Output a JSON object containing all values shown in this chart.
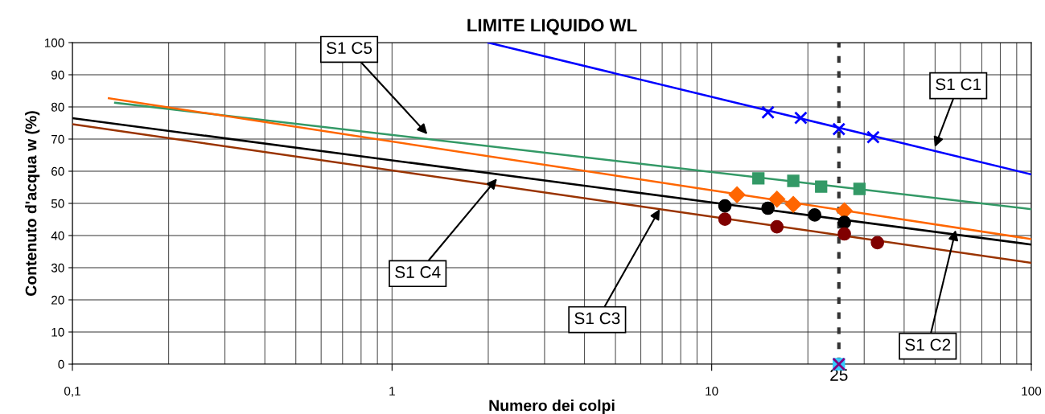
{
  "chart_data": {
    "type": "scatter",
    "title": "LIMITE LIQUIDO WL",
    "xlabel": "Numero dei colpi",
    "ylabel": "Contenuto d'acqua w (%)",
    "log": "x",
    "xlim": [
      0.1,
      100
    ],
    "xticks": [
      {
        "value": 0.1,
        "label": "0,1"
      },
      1,
      10,
      100
    ],
    "ylim": [
      0,
      100
    ],
    "yticks": [
      0,
      10,
      20,
      30,
      40,
      50,
      60,
      70,
      80,
      90,
      100
    ],
    "grid": true,
    "legend": false,
    "series": [
      {
        "type": "line",
        "color": "#0000ff",
        "x": [
          2,
          100
        ],
        "values": [
          100,
          59
        ],
        "marker": "none"
      },
      {
        "type": "line",
        "color": "#339966",
        "x": [
          0.136,
          100
        ],
        "values": [
          81.3,
          48.2
        ],
        "marker": "none"
      },
      {
        "type": "line",
        "color": "#ff6600",
        "x": [
          0.13,
          100
        ],
        "values": [
          82.7,
          38.9
        ],
        "marker": "none"
      },
      {
        "type": "line",
        "color": "#000000",
        "x": [
          0.1,
          100
        ],
        "values": [
          76.5,
          37.2
        ],
        "marker": "none"
      },
      {
        "type": "line",
        "color": "#993300",
        "x": [
          0.1,
          100
        ],
        "values": [
          74.6,
          31.5
        ],
        "marker": "none"
      },
      {
        "color": "#0000ff",
        "marker": "cross",
        "x": [
          15,
          19,
          25,
          32
        ],
        "values": [
          78.3,
          76.6,
          73.1,
          70.6
        ]
      },
      {
        "color": "#339966",
        "marker": "square",
        "x": [
          14,
          18,
          22,
          29
        ],
        "values": [
          57.8,
          57.0,
          55.2,
          54.5
        ]
      },
      {
        "color": "#ff6600",
        "marker": "diamond",
        "x": [
          12,
          16,
          18,
          26
        ],
        "values": [
          52.7,
          51.3,
          49.7,
          47.7
        ]
      },
      {
        "color": "#000000",
        "marker": "circle",
        "x": [
          11,
          15,
          21,
          26
        ],
        "values": [
          49.2,
          48.5,
          46.4,
          44.1
        ]
      },
      {
        "color": "#800000",
        "marker": "circle",
        "x": [
          11,
          16,
          26,
          33
        ],
        "values": [
          45.1,
          42.7,
          40.5,
          37.8
        ]
      },
      {
        "color": "#800080",
        "marker": "cross",
        "x": [
          25
        ],
        "values": [
          0
        ]
      },
      {
        "color": "#33ccff",
        "marker": "square",
        "x": [
          25
        ],
        "values": [
          0
        ]
      }
    ],
    "ref_lines": [
      {
        "axis": "x",
        "value": 25,
        "label": "25",
        "color": "#333333",
        "line_style": "dashed"
      }
    ],
    "annotations": [
      {
        "text": "S1 C1",
        "x": 49.9,
        "y": 67.5
      },
      {
        "text": "S1 C2",
        "x": 58.0,
        "y": 41.7
      },
      {
        "text": "S1 C3",
        "x": 6.88,
        "y": 48.2
      },
      {
        "text": "S1 C4",
        "x": 2.13,
        "y": 57.7
      },
      {
        "text": "S1 C5",
        "x": 1.29,
        "y": 71.5
      }
    ]
  }
}
